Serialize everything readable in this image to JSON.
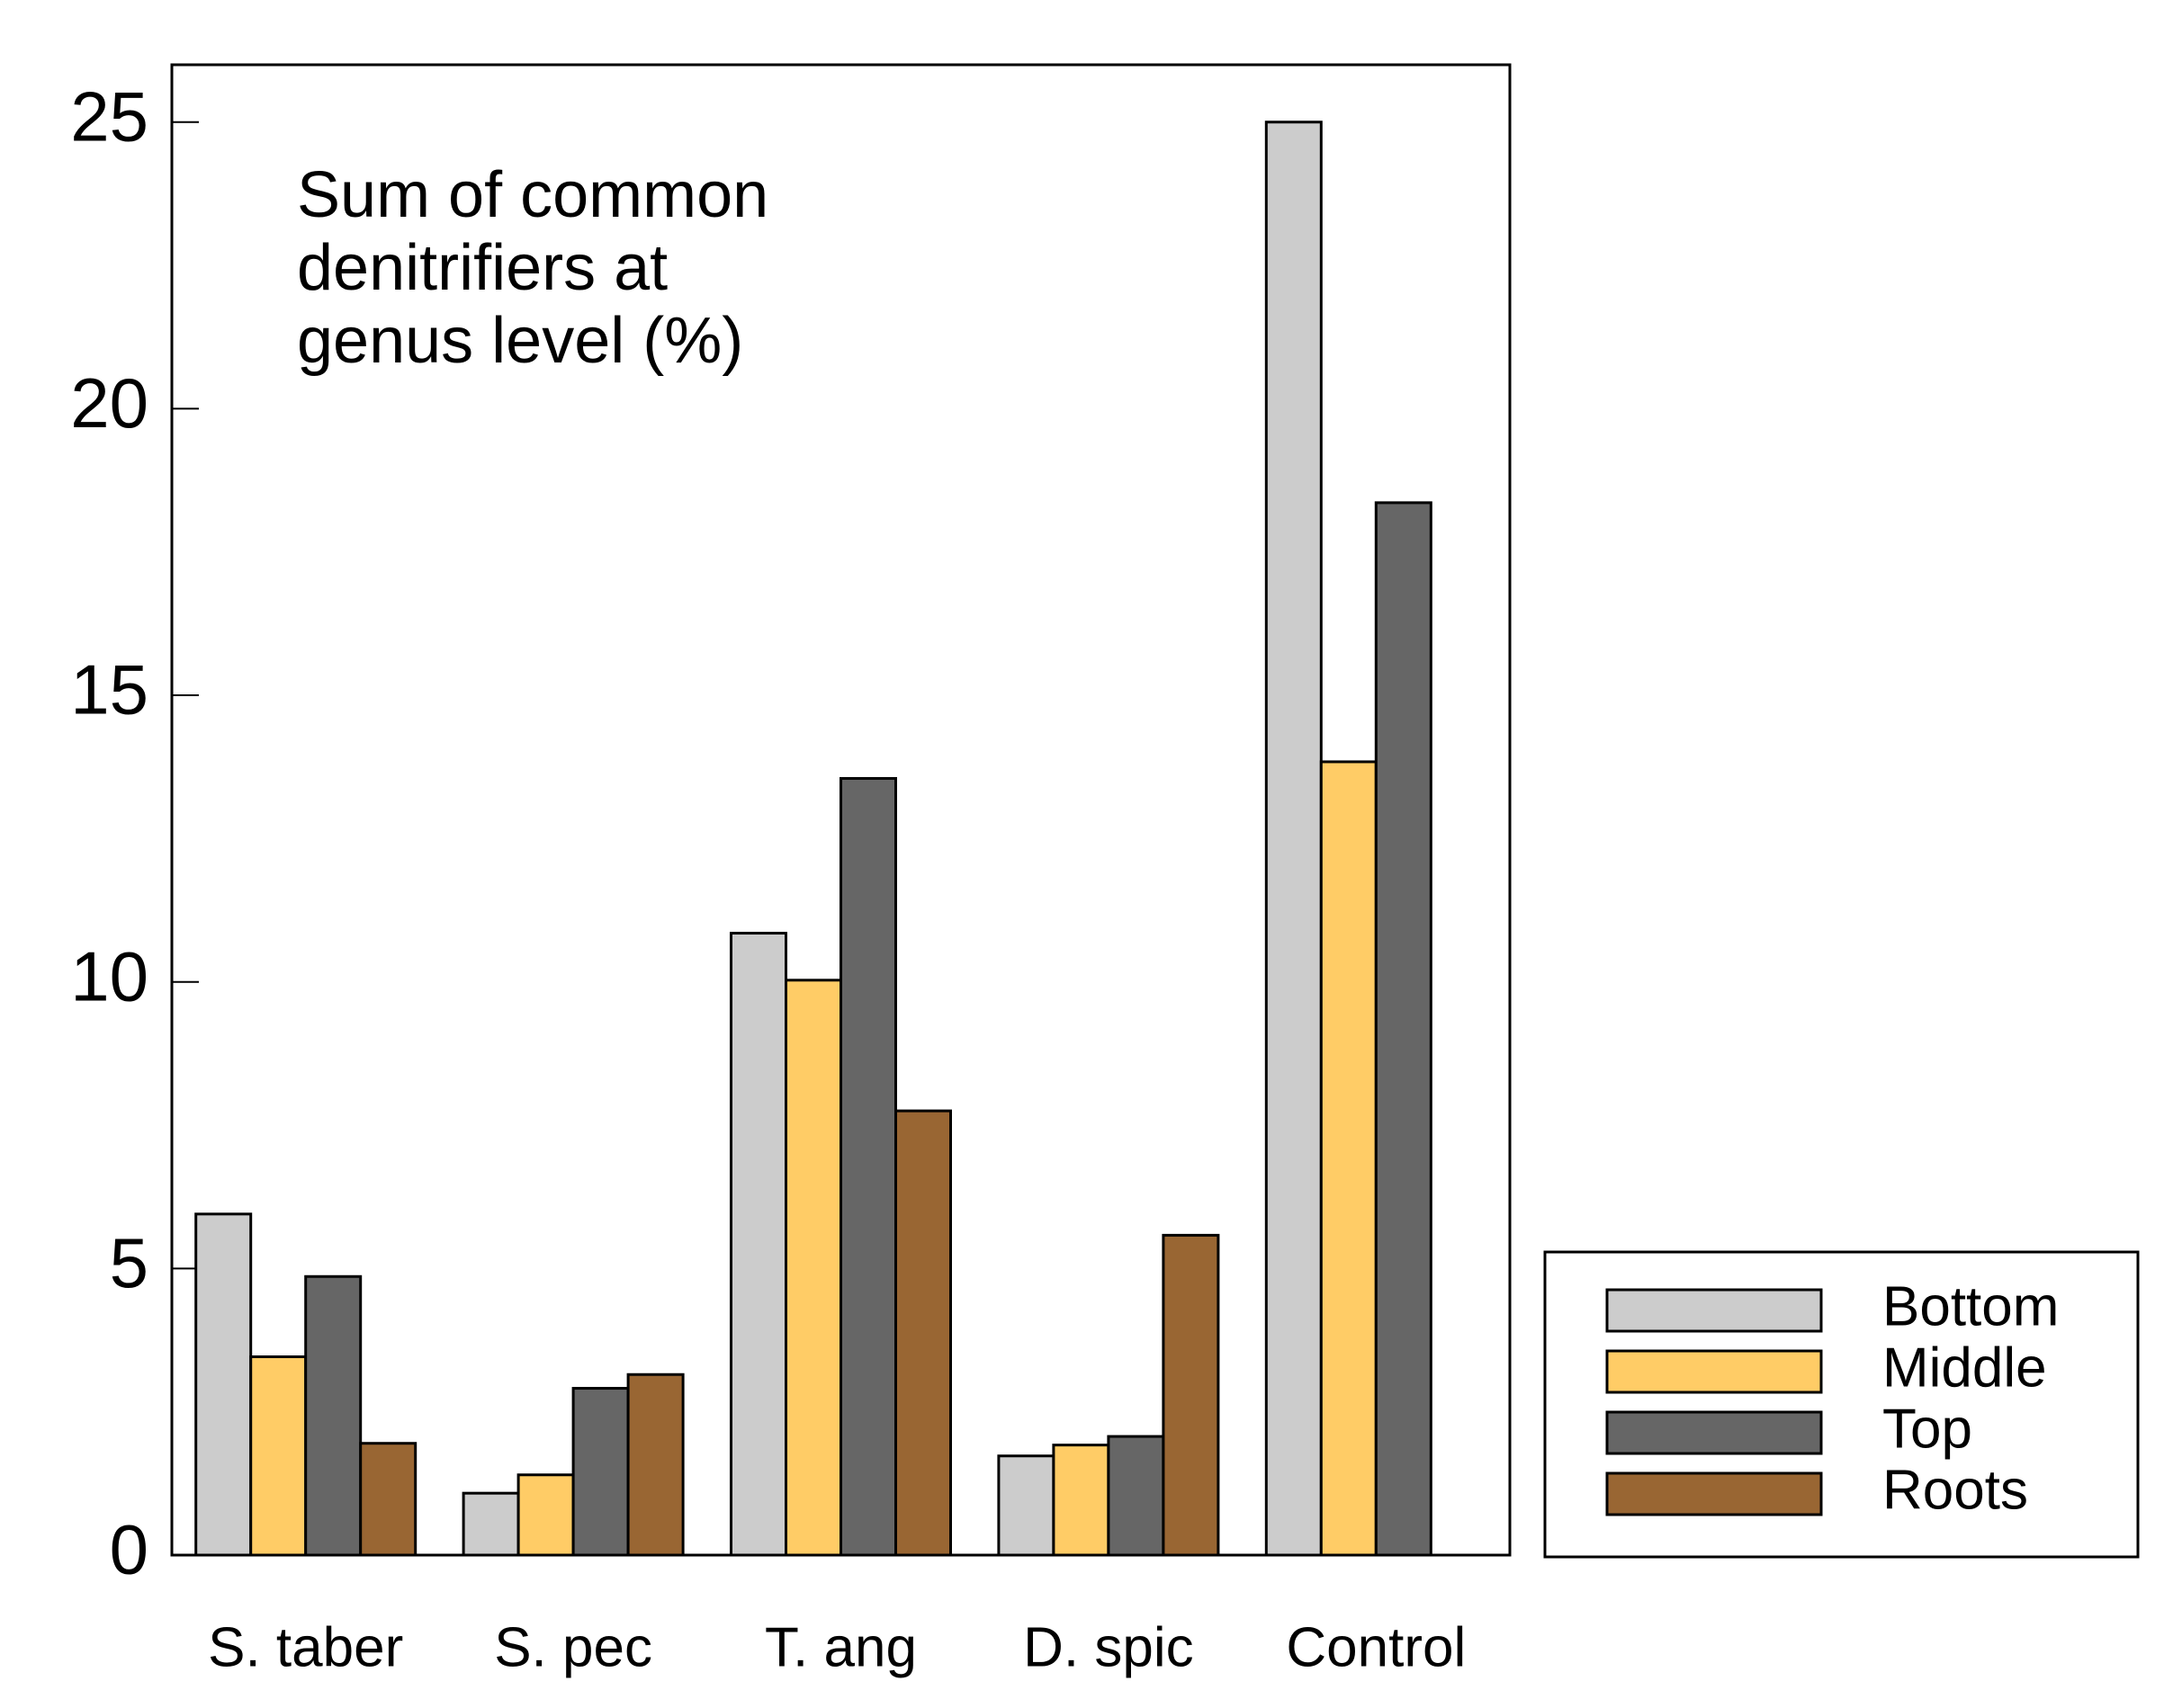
{
  "chart_data": {
    "type": "bar",
    "title": [
      "Sum of common",
      "denitrifiers at",
      "genus level (%)"
    ],
    "categories": [
      "S. taber",
      "S. pec",
      "T. ang",
      "D. spic",
      "Control"
    ],
    "series": [
      {
        "name": "Bottom",
        "color": "#cccccc",
        "values": [
          5.95,
          1.08,
          10.85,
          1.73,
          25
        ]
      },
      {
        "name": "Middle",
        "color": "#ffcc66",
        "values": [
          3.46,
          1.4,
          10.03,
          1.92,
          13.84
        ]
      },
      {
        "name": "Top",
        "color": "#666666",
        "values": [
          4.86,
          2.91,
          13.55,
          2.07,
          18.36
        ]
      },
      {
        "name": "Roots",
        "color": "#996633",
        "values": [
          1.95,
          3.15,
          7.75,
          5.58,
          null
        ]
      }
    ],
    "ylim": [
      0,
      26
    ],
    "yticks": [
      0,
      5,
      10,
      15,
      20,
      25
    ],
    "grid": false,
    "legend": "outside-bottom-right"
  }
}
